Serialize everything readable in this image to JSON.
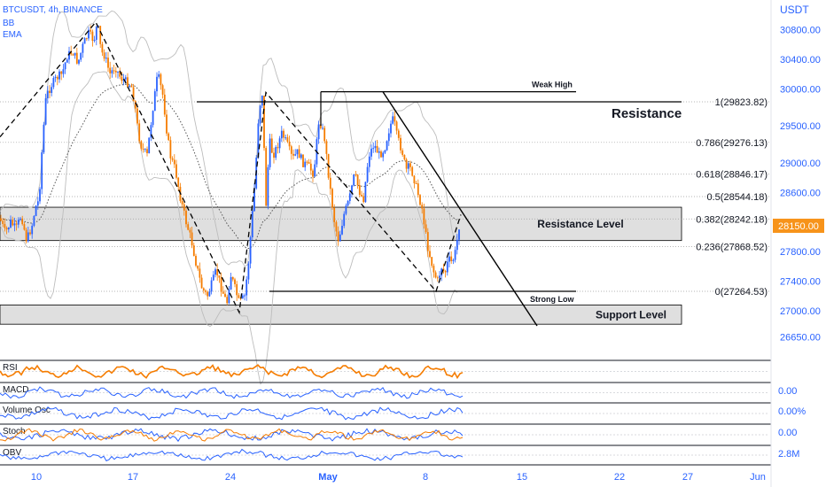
{
  "header": {
    "symbol_line": "BTCUSDT, 4h, BINANCE",
    "indicator_1": "BB",
    "indicator_2": "EMA"
  },
  "price_axis": {
    "currency": "USDT",
    "ticks": [
      "30800.00",
      "30400.00",
      "30000.00",
      "29500.00",
      "29000.00",
      "28600.00",
      "27800.00",
      "27400.00",
      "27000.00",
      "26650.00"
    ],
    "current_price": "28150.00",
    "current_price_color": "#f7931a"
  },
  "time_axis": {
    "labels": [
      "10",
      "17",
      "24",
      "May",
      "8",
      "15",
      "22",
      "27",
      "Jun"
    ]
  },
  "fib_levels": [
    {
      "label": "1(29823.82)",
      "price": 29823.82
    },
    {
      "label": "0.786(29276.13)",
      "price": 29276.13
    },
    {
      "label": "0.618(28846.17)",
      "price": 28846.17
    },
    {
      "label": "0.5(28544.18)",
      "price": 28544.18
    },
    {
      "label": "0.382(28242.18)",
      "price": 28242.18
    },
    {
      "label": "0.236(27868.52)",
      "price": 27868.52
    },
    {
      "label": "0(27264.53)",
      "price": 27264.53
    }
  ],
  "annotations": {
    "resistance": "Resistance",
    "resistance_level": "Resistance Level",
    "support_level": "Support Level",
    "weak_high": "Weak High",
    "strong_low": "Strong Low"
  },
  "panes": [
    {
      "name": "RSI",
      "value": "",
      "color": "#f57c00"
    },
    {
      "name": "MACD",
      "value": "0.00",
      "color": "#2962ff"
    },
    {
      "name": "Volume Osc",
      "value": "0.00%",
      "color": "#2962ff"
    },
    {
      "name": "Stoch",
      "value": "0.00",
      "color": "#2962ff"
    },
    {
      "name": "OBV",
      "value": "2.8M",
      "color": "#2962ff"
    }
  ],
  "colors": {
    "up": "#2962ff",
    "down": "#f57c00",
    "zone": "#d9d9d9",
    "text": "#131722",
    "axis_text": "#2962ff"
  },
  "chart_data": {
    "type": "candlestick",
    "title": "BTCUSDT, 4h, BINANCE",
    "ylim": [
      26500,
      31100
    ],
    "x_labels": [
      "10",
      "17",
      "24",
      "May",
      "8",
      "15",
      "22",
      "27",
      "Jun"
    ],
    "current_price": 28150,
    "price_path": [
      [
        0,
        28250
      ],
      [
        6,
        28050
      ],
      [
        12,
        28200
      ],
      [
        18,
        28100
      ],
      [
        24,
        28300
      ],
      [
        30,
        27950
      ],
      [
        36,
        28150
      ],
      [
        40,
        28400
      ],
      [
        44,
        28500
      ],
      [
        48,
        29300
      ],
      [
        52,
        29900
      ],
      [
        58,
        30050
      ],
      [
        64,
        30150
      ],
      [
        70,
        30200
      ],
      [
        76,
        30450
      ],
      [
        82,
        30500
      ],
      [
        88,
        30350
      ],
      [
        94,
        30600
      ],
      [
        100,
        30750
      ],
      [
        106,
        30650
      ],
      [
        110,
        30900
      ],
      [
        114,
        30500
      ],
      [
        118,
        30450
      ],
      [
        124,
        30200
      ],
      [
        130,
        30300
      ],
      [
        136,
        30150
      ],
      [
        142,
        30100
      ],
      [
        148,
        30050
      ],
      [
        152,
        29800
      ],
      [
        156,
        29400
      ],
      [
        160,
        29200
      ],
      [
        166,
        29100
      ],
      [
        172,
        29700
      ],
      [
        178,
        30200
      ],
      [
        184,
        29900
      ],
      [
        188,
        29450
      ],
      [
        192,
        29100
      ],
      [
        198,
        28900
      ],
      [
        204,
        28500
      ],
      [
        210,
        28200
      ],
      [
        216,
        27950
      ],
      [
        222,
        27600
      ],
      [
        228,
        27300
      ],
      [
        234,
        27200
      ],
      [
        240,
        27400
      ],
      [
        244,
        27550
      ],
      [
        250,
        27300
      ],
      [
        256,
        27100
      ],
      [
        260,
        27500
      ],
      [
        264,
        27350
      ],
      [
        270,
        27100
      ],
      [
        276,
        27200
      ],
      [
        280,
        27600
      ],
      [
        284,
        28200
      ],
      [
        288,
        28800
      ],
      [
        292,
        29700
      ],
      [
        296,
        29950
      ],
      [
        300,
        28400
      ],
      [
        304,
        29300
      ],
      [
        308,
        29100
      ],
      [
        312,
        29200
      ],
      [
        318,
        29400
      ],
      [
        324,
        29250
      ],
      [
        330,
        29050
      ],
      [
        336,
        29150
      ],
      [
        342,
        29000
      ],
      [
        348,
        28950
      ],
      [
        354,
        28850
      ],
      [
        360,
        29600
      ],
      [
        366,
        29350
      ],
      [
        372,
        28700
      ],
      [
        378,
        28150
      ],
      [
        382,
        27950
      ],
      [
        388,
        28300
      ],
      [
        394,
        28500
      ],
      [
        400,
        28850
      ],
      [
        406,
        28600
      ],
      [
        410,
        28500
      ],
      [
        416,
        29100
      ],
      [
        422,
        29250
      ],
      [
        428,
        29100
      ],
      [
        434,
        29200
      ],
      [
        440,
        29500
      ],
      [
        444,
        29600
      ],
      [
        448,
        29350
      ],
      [
        454,
        29150
      ],
      [
        458,
        28900
      ],
      [
        462,
        28950
      ],
      [
        466,
        28850
      ],
      [
        470,
        28650
      ],
      [
        476,
        28400
      ],
      [
        482,
        27900
      ],
      [
        486,
        27700
      ],
      [
        490,
        27500
      ],
      [
        494,
        27400
      ],
      [
        498,
        27600
      ],
      [
        502,
        27500
      ],
      [
        506,
        27700
      ],
      [
        510,
        27650
      ],
      [
        514,
        27800
      ],
      [
        518,
        28150
      ]
    ],
    "fibonacci": [
      {
        "ratio": "1",
        "price": 29823.82
      },
      {
        "ratio": "0.786",
        "price": 29276.13
      },
      {
        "ratio": "0.618",
        "price": 28846.17
      },
      {
        "ratio": "0.5",
        "price": 28544.18
      },
      {
        "ratio": "0.382",
        "price": 28242.18
      },
      {
        "ratio": "0.236",
        "price": 27868.52
      },
      {
        "ratio": "0",
        "price": 27264.53
      }
    ],
    "zones": [
      {
        "name": "Resistance Level",
        "from": 27950,
        "to": 28400
      },
      {
        "name": "Support Level",
        "from": 26820,
        "to": 27080
      }
    ],
    "horizontal_lines": [
      {
        "name": "Weak High",
        "price": 29960
      },
      {
        "name": "Strong Low",
        "price": 27264.53
      }
    ],
    "grid": true
  }
}
